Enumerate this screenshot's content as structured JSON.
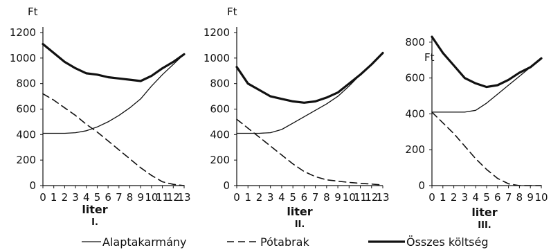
{
  "chart_data": [
    {
      "type": "line",
      "panel_label": "I.",
      "xlabel": "liter",
      "ylabel": "Ft",
      "xlim": [
        0,
        13
      ],
      "ylim": [
        0,
        1200
      ],
      "x_ticks": [
        0,
        1,
        2,
        3,
        4,
        5,
        6,
        7,
        8,
        9,
        10,
        11,
        12,
        13
      ],
      "y_ticks": [
        0,
        200,
        400,
        600,
        800,
        1000,
        1200
      ],
      "series": [
        {
          "name": "Alaptakarmány",
          "style": "thin",
          "x": [
            0,
            1,
            2,
            3,
            4,
            5,
            6,
            7,
            8,
            9,
            10,
            11,
            12,
            13
          ],
          "y": [
            410,
            410,
            410,
            415,
            430,
            460,
            500,
            550,
            610,
            680,
            780,
            870,
            950,
            1030
          ]
        },
        {
          "name": "Pótabrak",
          "style": "dashed",
          "x": [
            0,
            1,
            2,
            3,
            4,
            5,
            6,
            7,
            8,
            9,
            10,
            11,
            12,
            13
          ],
          "y": [
            720,
            670,
            610,
            550,
            480,
            420,
            350,
            280,
            210,
            140,
            80,
            30,
            10,
            0
          ]
        },
        {
          "name": "Összes költség",
          "style": "thick",
          "x": [
            0,
            1,
            2,
            3,
            4,
            5,
            6,
            7,
            8,
            9,
            10,
            11,
            12,
            13
          ],
          "y": [
            1110,
            1040,
            970,
            920,
            880,
            870,
            850,
            840,
            830,
            820,
            860,
            920,
            970,
            1030
          ]
        }
      ]
    },
    {
      "type": "line",
      "panel_label": "II.",
      "xlabel": "liter",
      "ylabel": "Ft",
      "xlim": [
        0,
        13
      ],
      "ylim": [
        0,
        1200
      ],
      "x_ticks": [
        0,
        1,
        2,
        3,
        4,
        5,
        6,
        7,
        8,
        9,
        10,
        11,
        12,
        13
      ],
      "y_ticks": [
        0,
        200,
        400,
        600,
        800,
        1000,
        1200
      ],
      "series": [
        {
          "name": "Alaptakarmány",
          "style": "thin",
          "x": [
            0,
            1,
            2,
            3,
            4,
            5,
            6,
            7,
            8,
            9,
            10,
            11,
            12,
            13
          ],
          "y": [
            410,
            410,
            410,
            415,
            440,
            490,
            540,
            590,
            640,
            700,
            780,
            870,
            950,
            1040
          ]
        },
        {
          "name": "Pótabrak",
          "style": "dashed",
          "x": [
            0,
            1,
            2,
            3,
            4,
            5,
            6,
            7,
            8,
            9,
            10,
            11,
            12,
            13
          ],
          "y": [
            520,
            450,
            380,
            310,
            240,
            170,
            110,
            70,
            45,
            35,
            25,
            18,
            12,
            5
          ]
        },
        {
          "name": "Összes költség",
          "style": "thick",
          "x": [
            0,
            1,
            2,
            3,
            4,
            5,
            6,
            7,
            8,
            9,
            10,
            11,
            12,
            13
          ],
          "y": [
            930,
            800,
            750,
            700,
            680,
            660,
            650,
            660,
            690,
            730,
            800,
            870,
            950,
            1040
          ]
        }
      ]
    },
    {
      "type": "line",
      "panel_label": "III.",
      "xlabel": "liter",
      "ylabel": "Ft",
      "xlim": [
        0,
        10
      ],
      "ylim": [
        0,
        900
      ],
      "x_ticks": [
        0,
        1,
        2,
        3,
        4,
        5,
        6,
        7,
        8,
        9,
        10
      ],
      "y_ticks": [
        0,
        200,
        400,
        600,
        800
      ],
      "series": [
        {
          "name": "Alaptakarmány",
          "style": "thin",
          "x": [
            0,
            1,
            2,
            3,
            4,
            5,
            6,
            7,
            8,
            9,
            10
          ],
          "y": [
            410,
            410,
            410,
            410,
            420,
            460,
            510,
            560,
            610,
            660,
            710
          ]
        },
        {
          "name": "Pótabrak",
          "style": "dashed",
          "x": [
            0,
            1,
            2,
            3,
            4,
            5,
            6,
            7,
            8,
            9,
            10
          ],
          "y": [
            410,
            350,
            290,
            220,
            150,
            90,
            40,
            10,
            0,
            0,
            0
          ]
        },
        {
          "name": "Összes költség",
          "style": "thick",
          "x": [
            0,
            1,
            2,
            3,
            4,
            5,
            6,
            7,
            8,
            9,
            10
          ],
          "y": [
            830,
            740,
            670,
            600,
            570,
            550,
            560,
            590,
            630,
            660,
            710
          ]
        }
      ]
    }
  ],
  "legend": [
    {
      "label": "Alaptakarmány",
      "style": "thin"
    },
    {
      "label": "Pótabrak",
      "style": "dashed"
    },
    {
      "label": "Összes költség",
      "style": "thick"
    }
  ]
}
